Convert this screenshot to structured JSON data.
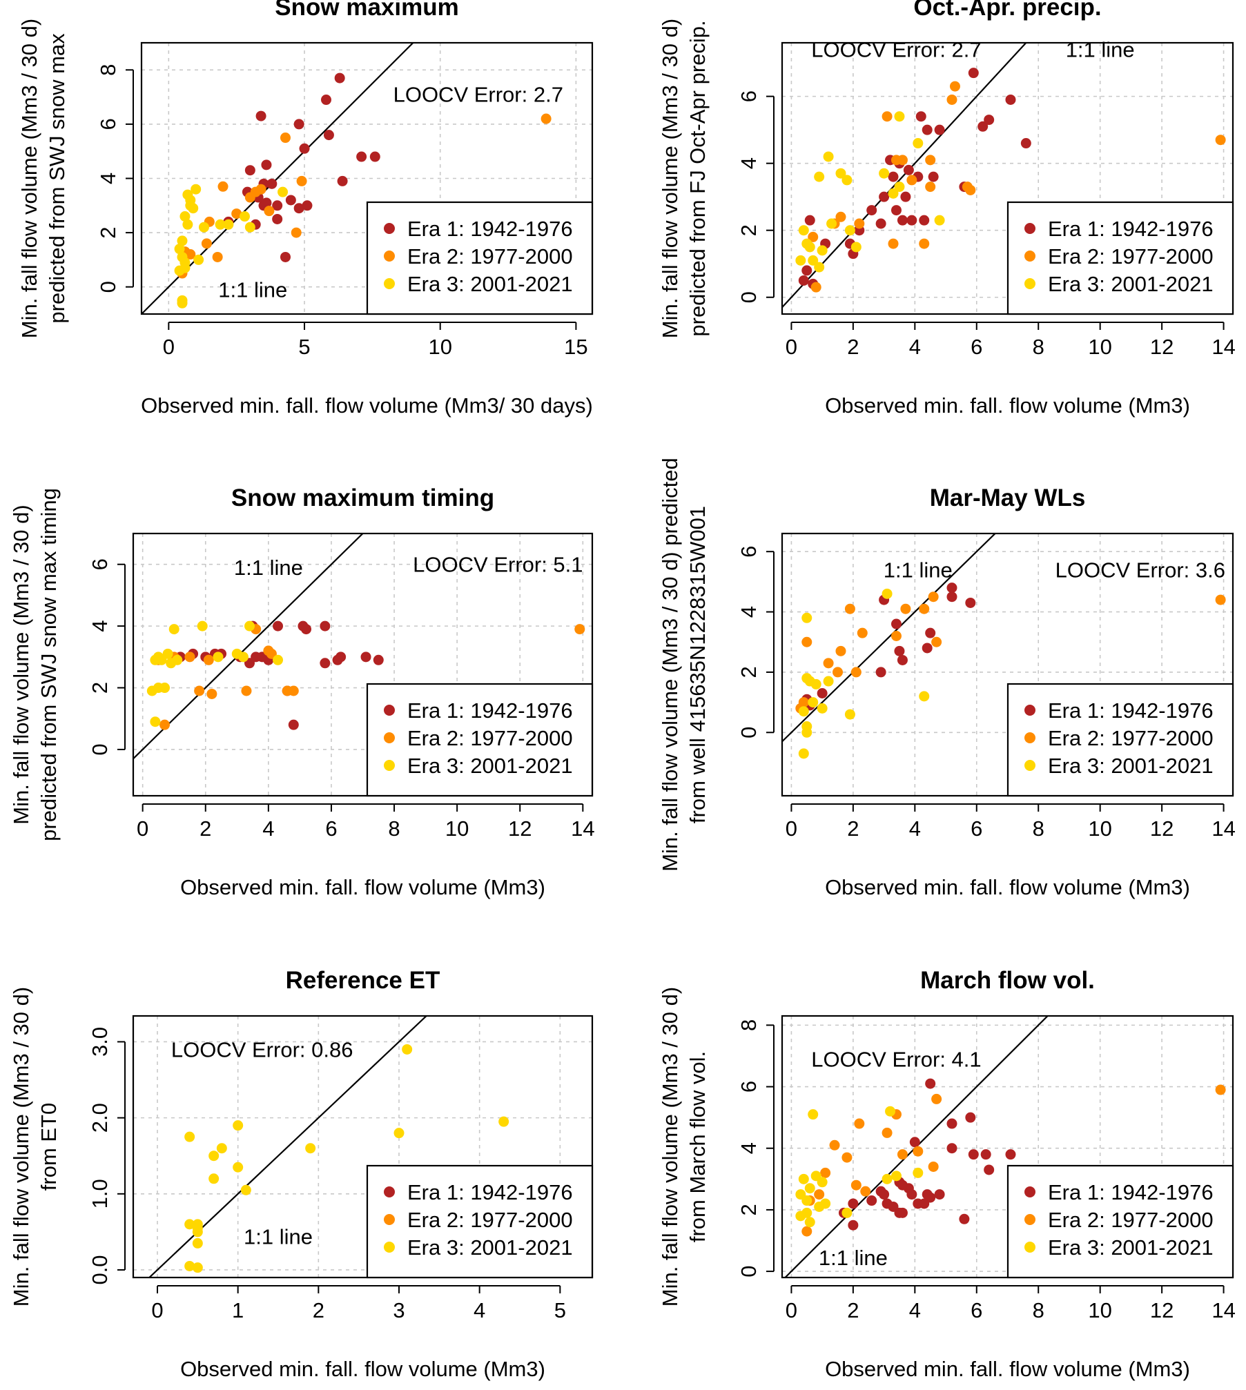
{
  "colors": {
    "era1": "#b22222",
    "era2": "#ff8c00",
    "era3": "#ffd700",
    "axis": "#000000",
    "grid": "#c8c8c8"
  },
  "legend_labels": [
    "Era 1: 1942-1976",
    "Era 2: 1977-2000",
    "Era 3: 2001-2021"
  ],
  "chart_data": [
    {
      "type": "scatter",
      "title": "Snow maximum",
      "xlabel": "Observed min. fall. flow volume (Mm3/ 30 days)",
      "ylabel": [
        "Min. fall flow volume (Mm3 / 30 d)",
        "predicted from SWJ snow max"
      ],
      "xlim": [
        -1,
        15.6
      ],
      "ylim": [
        -1,
        9
      ],
      "xticks": [
        0,
        5,
        10,
        15
      ],
      "xticklabels": [
        "0",
        "5",
        "10",
        "15"
      ],
      "yticks": [
        0,
        2,
        4,
        6,
        8
      ],
      "yticklabels": [
        "0",
        "2",
        "4",
        "6",
        "8"
      ],
      "annotations": [
        {
          "text": "LOOCV Error:  2.7",
          "x": 11.4,
          "y": 7.1
        },
        {
          "text": "1:1 line",
          "x": 3.1,
          "y": -0.1
        }
      ],
      "grid": true,
      "legend_position": "bottom-right",
      "series": [
        {
          "name": "Era 1: 1942-1976",
          "color": "#b22222",
          "x": [
            3.4,
            6.3,
            5.8,
            4.8,
            5.9,
            5.0,
            3.0,
            3.6,
            3.5,
            3.8,
            2.9,
            3.3,
            3.5,
            4.0,
            4.5,
            3.6,
            4.0,
            4.8,
            5.1,
            6.4,
            7.1,
            7.6,
            4.3,
            2.2,
            3.2
          ],
          "y": [
            6.3,
            7.7,
            6.9,
            6.0,
            5.6,
            5.1,
            4.3,
            4.5,
            3.8,
            3.8,
            3.5,
            3.3,
            3.0,
            3.0,
            3.2,
            3.1,
            2.5,
            2.9,
            3.0,
            3.9,
            4.8,
            4.8,
            1.1,
            2.4,
            2.3
          ]
        },
        {
          "name": "Era 2: 1977-2000",
          "color": "#ff8c00",
          "x": [
            13.9,
            4.3,
            4.9,
            4.7,
            3.7,
            3.0,
            2.0,
            2.5,
            1.5,
            1.4,
            1.8,
            0.6,
            0.8,
            0.5,
            3.2,
            3.4
          ],
          "y": [
            6.2,
            5.5,
            3.9,
            2.0,
            2.8,
            3.3,
            3.7,
            2.7,
            2.4,
            1.6,
            1.1,
            1.3,
            1.2,
            0.5,
            3.5,
            3.6
          ]
        },
        {
          "name": "Era 3: 2001-2021",
          "color": "#ffd700",
          "x": [
            0.7,
            1.0,
            0.8,
            0.9,
            0.6,
            0.7,
            1.3,
            1.9,
            0.4,
            0.5,
            0.5,
            0.6,
            2.2,
            2.8,
            3.0,
            4.2,
            0.5,
            0.5,
            0.4,
            0.6,
            1.1,
            0.8
          ],
          "y": [
            3.4,
            3.6,
            3.2,
            2.9,
            2.6,
            2.3,
            2.2,
            2.3,
            1.4,
            1.7,
            1.1,
            0.9,
            2.3,
            2.6,
            2.2,
            3.5,
            -0.5,
            -0.6,
            0.6,
            0.7,
            1.0,
            3.0
          ]
        }
      ]
    },
    {
      "type": "scatter",
      "title": "Oct.-Apr. precip.",
      "xlabel": "Observed min. fall. flow volume (Mm3)",
      "ylabel": [
        "Min. fall flow volume (Mm3 / 30 d)",
        "predicted from FJ Oct-Apr precip."
      ],
      "xlim": [
        -0.3,
        14.3
      ],
      "ylim": [
        -0.5,
        7.6
      ],
      "xticks": [
        0,
        2,
        4,
        6,
        8,
        10,
        12,
        14
      ],
      "xticklabels": [
        "0",
        "2",
        "4",
        "6",
        "8",
        "10",
        "12",
        "14"
      ],
      "yticks": [
        0,
        2,
        4,
        6
      ],
      "yticklabels": [
        "0",
        "2",
        "4",
        "6"
      ],
      "annotations": [
        {
          "text": "LOOCV Error:  2.7",
          "x": 3.4,
          "y": 7.4
        },
        {
          "text": "1:1 line",
          "x": 10.0,
          "y": 7.4
        }
      ],
      "grid": true,
      "legend_position": "bottom-right",
      "series": [
        {
          "name": "Era 1: 1942-1976",
          "color": "#b22222",
          "x": [
            5.9,
            7.1,
            6.4,
            6.2,
            7.6,
            4.2,
            4.4,
            4.8,
            3.2,
            3.5,
            3.8,
            4.6,
            5.6,
            3.0,
            3.4,
            3.6,
            2.9,
            3.9,
            4.3,
            2.6,
            2.2,
            2.0,
            1.9,
            1.1,
            0.5,
            0.4,
            0.6,
            0.7,
            3.3,
            3.7,
            4.1
          ],
          "y": [
            6.7,
            5.9,
            5.3,
            5.1,
            4.6,
            5.4,
            5.0,
            5.0,
            4.1,
            4.0,
            3.8,
            3.6,
            3.3,
            3.0,
            2.6,
            2.3,
            2.2,
            2.3,
            2.3,
            2.6,
            2.0,
            1.3,
            1.6,
            1.6,
            0.8,
            0.5,
            2.3,
            0.4,
            3.6,
            3.0,
            3.6
          ]
        },
        {
          "name": "Era 2: 1977-2000",
          "color": "#ff8c00",
          "x": [
            13.9,
            5.3,
            5.2,
            5.7,
            5.8,
            4.5,
            3.1,
            3.4,
            3.6,
            3.9,
            4.3,
            4.5,
            2.2,
            1.6,
            0.8,
            0.7,
            1.4,
            3.3
          ],
          "y": [
            4.7,
            6.3,
            5.9,
            3.3,
            3.2,
            4.1,
            5.4,
            4.1,
            4.1,
            3.5,
            1.6,
            3.3,
            2.2,
            2.4,
            0.3,
            1.8,
            2.2,
            1.6
          ]
        },
        {
          "name": "Era 3: 2001-2021",
          "color": "#ffd700",
          "x": [
            1.2,
            0.9,
            1.6,
            1.8,
            3.0,
            3.5,
            3.3,
            4.1,
            0.4,
            0.5,
            0.6,
            0.7,
            1.0,
            0.3,
            0.9,
            1.3,
            1.9,
            2.1,
            4.8,
            3.5
          ],
          "y": [
            4.2,
            3.6,
            3.7,
            3.5,
            3.7,
            5.4,
            3.1,
            4.6,
            2.0,
            1.6,
            1.5,
            1.1,
            1.4,
            1.1,
            0.9,
            2.2,
            2.0,
            1.5,
            2.3,
            3.3
          ]
        }
      ]
    },
    {
      "type": "scatter",
      "title": "Snow maximum timing",
      "xlabel": "Observed min. fall. flow volume (Mm3)",
      "ylabel": [
        "Min. fall flow volume (Mm3 / 30 d)",
        "predicted from SWJ snow max timing"
      ],
      "xlim": [
        -0.3,
        14.3
      ],
      "ylim": [
        -1.5,
        7.0
      ],
      "xticks": [
        0,
        2,
        4,
        6,
        8,
        10,
        12,
        14
      ],
      "xticklabels": [
        "0",
        "2",
        "4",
        "6",
        "8",
        "10",
        "12",
        "14"
      ],
      "yticks": [
        0,
        2,
        4,
        6
      ],
      "yticklabels": [
        "0",
        "2",
        "4",
        "6"
      ],
      "annotations": [
        {
          "text": "1:1 line",
          "x": 4.0,
          "y": 5.9
        },
        {
          "text": "LOOCV Error:  5.1",
          "x": 11.3,
          "y": 6.0
        }
      ],
      "grid": true,
      "legend_position": "bottom-right",
      "series": [
        {
          "name": "Era 1: 1942-1976",
          "color": "#b22222",
          "x": [
            3.5,
            4.3,
            5.1,
            5.2,
            5.8,
            4.8,
            4.6,
            3.6,
            3.8,
            4.0,
            2.5,
            2.3,
            2.0,
            1.6,
            1.2,
            5.8,
            6.2,
            6.3,
            7.1,
            7.5,
            3.1,
            3.4
          ],
          "y": [
            4.0,
            4.0,
            4.0,
            3.9,
            4.0,
            0.8,
            1.9,
            3.0,
            3.0,
            2.9,
            3.1,
            3.1,
            3.0,
            3.1,
            3.0,
            2.8,
            2.9,
            3.0,
            3.0,
            2.9,
            3.0,
            2.8
          ]
        },
        {
          "name": "Era 2: 1977-2000",
          "color": "#ff8c00",
          "x": [
            13.9,
            3.6,
            4.1,
            4.0,
            1.8,
            2.2,
            3.3,
            4.6,
            4.8,
            0.7,
            0.5,
            1.0,
            1.5,
            2.1
          ],
          "y": [
            3.9,
            3.9,
            3.1,
            3.2,
            1.9,
            1.8,
            1.9,
            1.9,
            1.9,
            0.8,
            2.9,
            3.0,
            3.0,
            2.9
          ]
        },
        {
          "name": "Era 3: 2001-2021",
          "color": "#ffd700",
          "x": [
            1.0,
            1.9,
            3.4,
            0.4,
            0.5,
            0.6,
            0.8,
            1.1,
            0.3,
            0.5,
            0.7,
            0.4,
            3.0,
            3.2,
            4.3,
            2.4,
            0.9
          ],
          "y": [
            3.9,
            4.0,
            4.0,
            2.9,
            3.0,
            2.9,
            3.1,
            2.9,
            1.9,
            2.0,
            2.0,
            0.9,
            3.1,
            3.0,
            2.9,
            3.0,
            2.8
          ]
        }
      ]
    },
    {
      "type": "scatter",
      "title": "Mar-May WLs",
      "xlabel": "Observed min. fall. flow volume (Mm3)",
      "ylabel": [
        "Min. fall flow volume (Mm3 / 30 d) predicted",
        "from well 415635N1228315W001"
      ],
      "xlim": [
        -0.3,
        14.3
      ],
      "ylim": [
        -2.1,
        6.6
      ],
      "xticks": [
        0,
        2,
        4,
        6,
        8,
        10,
        12,
        14
      ],
      "xticklabels": [
        "0",
        "2",
        "4",
        "6",
        "8",
        "10",
        "12",
        "14"
      ],
      "yticks": [
        0,
        2,
        4,
        6
      ],
      "yticklabels": [
        "0",
        "2",
        "4",
        "6"
      ],
      "annotations": [
        {
          "text": "1:1 line",
          "x": 4.1,
          "y": 5.4
        },
        {
          "text": "LOOCV Error:  3.6",
          "x": 11.3,
          "y": 5.4
        }
      ],
      "grid": true,
      "legend_position": "bottom-right",
      "series": [
        {
          "name": "Era 1: 1942-1976",
          "color": "#b22222",
          "x": [
            5.2,
            5.2,
            5.8,
            3.0,
            3.4,
            4.5,
            4.4,
            3.5,
            3.6,
            2.9,
            1.0,
            0.5,
            0.6
          ],
          "y": [
            4.8,
            4.5,
            4.3,
            4.4,
            3.6,
            3.3,
            2.8,
            2.7,
            2.4,
            2.0,
            1.3,
            1.1,
            0.9
          ]
        },
        {
          "name": "Era 2: 1977-2000",
          "color": "#ff8c00",
          "x": [
            13.9,
            1.9,
            3.7,
            4.3,
            4.7,
            3.4,
            2.3,
            1.6,
            1.2,
            1.5,
            0.5,
            0.4,
            0.3,
            4.6,
            2.1
          ],
          "y": [
            4.4,
            4.1,
            4.1,
            4.1,
            3.0,
            3.2,
            3.3,
            2.7,
            2.3,
            2.0,
            3.0,
            1.0,
            0.8,
            4.5,
            2.0
          ]
        },
        {
          "name": "Era 3: 2001-2021",
          "color": "#ffd700",
          "x": [
            3.1,
            0.5,
            0.5,
            0.6,
            0.8,
            1.0,
            1.2,
            0.4,
            0.5,
            0.5,
            0.4,
            4.3,
            1.9,
            0.7
          ],
          "y": [
            4.6,
            3.8,
            1.8,
            1.7,
            1.6,
            0.8,
            1.7,
            0.7,
            0.2,
            0.0,
            -0.7,
            1.2,
            0.6,
            1.0
          ]
        }
      ]
    },
    {
      "type": "scatter",
      "title": "Reference ET",
      "xlabel": "Observed min. fall. flow volume (Mm3)",
      "ylabel": [
        "Min. fall flow volume (Mm3 / 30 d)",
        "from ET0"
      ],
      "xlim": [
        -0.3,
        5.4
      ],
      "ylim": [
        -0.1,
        3.34
      ],
      "xticks": [
        0,
        1,
        2,
        3,
        4,
        5
      ],
      "xticklabels": [
        "0",
        "1",
        "2",
        "3",
        "4",
        "5"
      ],
      "yticks": [
        0,
        1,
        2,
        3
      ],
      "yticklabels": [
        "0.0",
        "1.0",
        "2.0",
        "3.0"
      ],
      "annotations": [
        {
          "text": "LOOCV Error:  0.86",
          "x": 1.3,
          "y": 2.9
        },
        {
          "text": "1:1 line",
          "x": 1.5,
          "y": 0.44
        }
      ],
      "grid": true,
      "legend_position": "bottom-right",
      "series": [
        {
          "name": "Era 3: 2001-2021",
          "color": "#ffd700",
          "x": [
            3.1,
            0.4,
            0.7,
            0.8,
            1.0,
            1.9,
            3.0,
            4.3,
            1.0,
            0.7,
            1.1,
            0.4,
            0.5,
            0.5,
            0.5,
            0.5,
            0.4,
            0.5
          ],
          "y": [
            2.9,
            1.75,
            1.5,
            1.6,
            1.9,
            1.6,
            1.8,
            1.95,
            1.35,
            1.2,
            1.05,
            0.6,
            0.5,
            0.6,
            0.55,
            0.35,
            0.05,
            0.03
          ]
        }
      ]
    },
    {
      "type": "scatter",
      "title": "March flow vol.",
      "xlabel": "Observed min. fall. flow volume (Mm3)",
      "ylabel": [
        "Min. fall flow volume (Mm3 / 30 d)",
        "from March flow vol."
      ],
      "xlim": [
        -0.3,
        14.3
      ],
      "ylim": [
        -0.2,
        8.3
      ],
      "xticks": [
        0,
        2,
        4,
        6,
        8,
        10,
        12,
        14
      ],
      "xticklabels": [
        "0",
        "2",
        "4",
        "6",
        "8",
        "10",
        "12",
        "14"
      ],
      "yticks": [
        0,
        2,
        4,
        6,
        8
      ],
      "yticklabels": [
        "0",
        "2",
        "4",
        "6",
        "8"
      ],
      "annotations": [
        {
          "text": "LOOCV Error:  4.1",
          "x": 3.4,
          "y": 6.9
        },
        {
          "text": "1:1 line",
          "x": 2.0,
          "y": 0.45
        }
      ],
      "grid": true,
      "legend_position": "bottom-right",
      "series": [
        {
          "name": "Era 1: 1942-1976",
          "color": "#b22222",
          "x": [
            4.5,
            5.8,
            5.2,
            5.2,
            4.0,
            5.9,
            6.3,
            6.4,
            7.1,
            5.6,
            3.5,
            3.8,
            3.9,
            4.3,
            4.4,
            4.8,
            2.9,
            3.1,
            3.3,
            3.5,
            3.6,
            4.1,
            4.5,
            2.0,
            2.0,
            1.7,
            2.6,
            3.0,
            3.6
          ],
          "y": [
            6.1,
            5.0,
            4.8,
            4.0,
            4.2,
            3.8,
            3.8,
            3.3,
            3.8,
            1.7,
            2.9,
            2.7,
            2.5,
            2.2,
            2.5,
            2.5,
            2.6,
            2.2,
            2.1,
            1.9,
            1.9,
            2.2,
            2.4,
            1.5,
            2.2,
            1.9,
            2.3,
            2.5,
            2.8
          ]
        },
        {
          "name": "Era 2: 1977-2000",
          "color": "#ff8c00",
          "x": [
            13.9,
            3.4,
            3.1,
            4.7,
            2.2,
            1.4,
            1.8,
            3.6,
            4.1,
            0.5,
            0.9,
            1.1,
            2.1,
            2.4,
            0.6,
            4.6
          ],
          "y": [
            5.9,
            5.1,
            4.5,
            5.6,
            4.8,
            4.1,
            3.7,
            3.8,
            3.9,
            1.3,
            2.5,
            3.2,
            2.8,
            2.6,
            2.3,
            3.4
          ]
        },
        {
          "name": "Era 3: 2001-2021",
          "color": "#ffd700",
          "x": [
            0.7,
            3.2,
            4.1,
            0.4,
            0.6,
            0.8,
            1.0,
            0.3,
            0.5,
            0.5,
            0.9,
            1.1,
            3.1,
            3.4,
            0.3,
            0.6,
            1.8
          ],
          "y": [
            5.1,
            5.2,
            3.2,
            3.0,
            2.7,
            3.1,
            2.9,
            2.5,
            2.3,
            1.9,
            2.1,
            2.2,
            3.0,
            3.1,
            1.8,
            1.6,
            1.9
          ]
        }
      ]
    }
  ]
}
